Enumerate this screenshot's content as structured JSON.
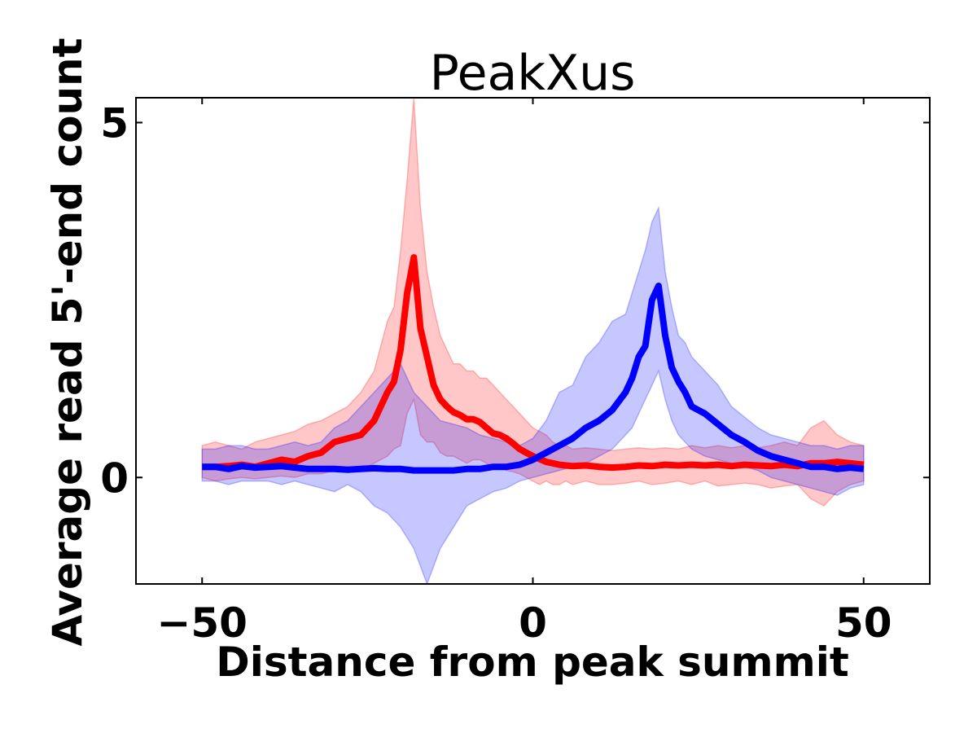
{
  "chart_data": {
    "type": "line",
    "title": "PeakXus",
    "xlabel": "Distance from peak summit",
    "ylabel": "Average read 5'-end count",
    "xlim": [
      -60,
      60
    ],
    "ylim": [
      -1.5,
      5.35
    ],
    "xticks": [
      -50,
      0,
      50
    ],
    "xtick_labels": [
      "−50",
      "0",
      "50"
    ],
    "yticks": [
      0,
      5
    ],
    "ytick_labels": [
      "0",
      "5"
    ],
    "grid": false,
    "legend": "none",
    "series": [
      {
        "color": "#ff0000",
        "band_color": "#ff0000",
        "x": [
          -50,
          -48,
          -46,
          -44,
          -42,
          -40,
          -38,
          -36,
          -34,
          -32,
          -30,
          -28,
          -26,
          -24,
          -22,
          -21,
          -20,
          -19,
          -18,
          -17,
          -16,
          -15,
          -14,
          -13,
          -12,
          -11,
          -10,
          -9,
          -8,
          -7,
          -6,
          -5,
          -4,
          -3,
          -2,
          -1,
          0,
          1,
          2,
          3,
          4,
          5,
          6,
          8,
          10,
          12,
          14,
          16,
          18,
          20,
          22,
          24,
          26,
          28,
          30,
          32,
          34,
          36,
          38,
          40,
          42,
          44,
          46,
          48,
          50
        ],
        "y": [
          0.15,
          0.15,
          0.16,
          0.18,
          0.15,
          0.2,
          0.25,
          0.22,
          0.3,
          0.35,
          0.5,
          0.55,
          0.6,
          0.8,
          1.2,
          1.35,
          1.8,
          2.6,
          3.1,
          2.1,
          1.7,
          1.3,
          1.1,
          1.0,
          0.92,
          0.88,
          0.82,
          0.82,
          0.78,
          0.7,
          0.62,
          0.6,
          0.55,
          0.48,
          0.4,
          0.35,
          0.3,
          0.26,
          0.22,
          0.2,
          0.18,
          0.17,
          0.16,
          0.17,
          0.15,
          0.14,
          0.15,
          0.17,
          0.16,
          0.18,
          0.17,
          0.18,
          0.17,
          0.18,
          0.16,
          0.18,
          0.17,
          0.16,
          0.18,
          0.16,
          0.2,
          0.2,
          0.22,
          0.2,
          0.18
        ],
        "lower": [
          0.0,
          -0.05,
          -0.02,
          0.0,
          -0.02,
          0.0,
          0.02,
          0.0,
          0.05,
          0.05,
          0.1,
          0.12,
          0.1,
          0.2,
          0.3,
          0.4,
          0.45,
          0.9,
          1.1,
          0.6,
          0.5,
          0.5,
          0.35,
          0.3,
          0.3,
          0.25,
          0.2,
          0.25,
          0.25,
          0.2,
          0.15,
          0.15,
          0.1,
          0.08,
          0.05,
          0.0,
          -0.05,
          -0.1,
          -0.05,
          -0.1,
          -0.1,
          -0.05,
          -0.1,
          -0.05,
          -0.1,
          -0.1,
          -0.08,
          -0.05,
          -0.1,
          -0.08,
          -0.05,
          -0.1,
          -0.05,
          -0.12,
          -0.1,
          -0.08,
          -0.1,
          -0.15,
          -0.12,
          -0.1,
          -0.3,
          -0.4,
          -0.2,
          -0.1,
          -0.05
        ],
        "upper": [
          0.45,
          0.5,
          0.45,
          0.4,
          0.5,
          0.55,
          0.6,
          0.65,
          0.75,
          0.8,
          0.9,
          1.0,
          1.2,
          1.5,
          2.2,
          2.4,
          3.2,
          4.2,
          5.35,
          3.8,
          2.9,
          2.4,
          2.0,
          1.8,
          1.6,
          1.6,
          1.5,
          1.5,
          1.4,
          1.4,
          1.3,
          1.2,
          1.1,
          1.0,
          0.9,
          0.8,
          0.7,
          0.65,
          0.6,
          0.5,
          0.45,
          0.45,
          0.4,
          0.42,
          0.4,
          0.38,
          0.4,
          0.42,
          0.4,
          0.42,
          0.4,
          0.45,
          0.42,
          0.45,
          0.42,
          0.45,
          0.42,
          0.45,
          0.5,
          0.45,
          0.7,
          0.8,
          0.6,
          0.5,
          0.45
        ]
      },
      {
        "color": "#0000ff",
        "band_color": "#0000ff",
        "x": [
          -50,
          -48,
          -46,
          -44,
          -42,
          -40,
          -38,
          -36,
          -34,
          -32,
          -30,
          -28,
          -26,
          -24,
          -22,
          -20,
          -18,
          -16,
          -14,
          -12,
          -10,
          -8,
          -6,
          -4,
          -2,
          0,
          2,
          4,
          6,
          8,
          10,
          12,
          14,
          15,
          16,
          17,
          18,
          19,
          20,
          21,
          22,
          23,
          24,
          25,
          26,
          28,
          30,
          32,
          34,
          36,
          38,
          40,
          42,
          44,
          46,
          48,
          50
        ],
        "y": [
          0.15,
          0.15,
          0.12,
          0.16,
          0.14,
          0.15,
          0.16,
          0.14,
          0.12,
          0.12,
          0.12,
          0.11,
          0.12,
          0.13,
          0.12,
          0.12,
          0.1,
          0.1,
          0.1,
          0.1,
          0.12,
          0.12,
          0.15,
          0.15,
          0.18,
          0.25,
          0.35,
          0.45,
          0.55,
          0.7,
          0.8,
          0.95,
          1.2,
          1.4,
          1.7,
          1.85,
          2.5,
          2.7,
          2.0,
          1.55,
          1.35,
          1.2,
          1.0,
          0.95,
          0.9,
          0.75,
          0.6,
          0.5,
          0.38,
          0.3,
          0.25,
          0.2,
          0.15,
          0.15,
          0.12,
          0.14,
          0.12
        ],
        "lower": [
          -0.05,
          -0.05,
          -0.1,
          -0.05,
          -0.05,
          -0.05,
          -0.1,
          -0.05,
          -0.1,
          -0.15,
          -0.2,
          -0.1,
          -0.2,
          -0.4,
          -0.5,
          -0.7,
          -1.0,
          -1.5,
          -1.0,
          -0.7,
          -0.4,
          -0.3,
          -0.2,
          -0.15,
          -0.05,
          0.0,
          0.05,
          0.1,
          0.15,
          0.2,
          0.3,
          0.4,
          0.6,
          0.7,
          0.9,
          1.1,
          1.3,
          1.5,
          1.1,
          0.8,
          0.6,
          0.5,
          0.4,
          0.35,
          0.3,
          0.25,
          0.2,
          0.15,
          0.1,
          0.0,
          -0.05,
          -0.1,
          -0.15,
          -0.2,
          -0.25,
          -0.15,
          -0.1
        ],
        "upper": [
          0.4,
          0.4,
          0.45,
          0.45,
          0.4,
          0.4,
          0.45,
          0.5,
          0.45,
          0.5,
          0.7,
          0.8,
          1.0,
          1.2,
          1.4,
          1.6,
          1.2,
          1.0,
          0.8,
          0.75,
          0.7,
          0.6,
          0.55,
          0.5,
          0.45,
          0.55,
          0.8,
          1.2,
          1.3,
          1.7,
          1.9,
          2.2,
          2.3,
          2.6,
          2.9,
          3.2,
          3.6,
          3.8,
          2.9,
          2.4,
          2.0,
          1.9,
          1.7,
          1.6,
          1.5,
          1.3,
          1.0,
          0.85,
          0.7,
          0.6,
          0.55,
          0.5,
          0.45,
          0.45,
          0.4,
          0.45,
          0.45
        ]
      }
    ]
  }
}
